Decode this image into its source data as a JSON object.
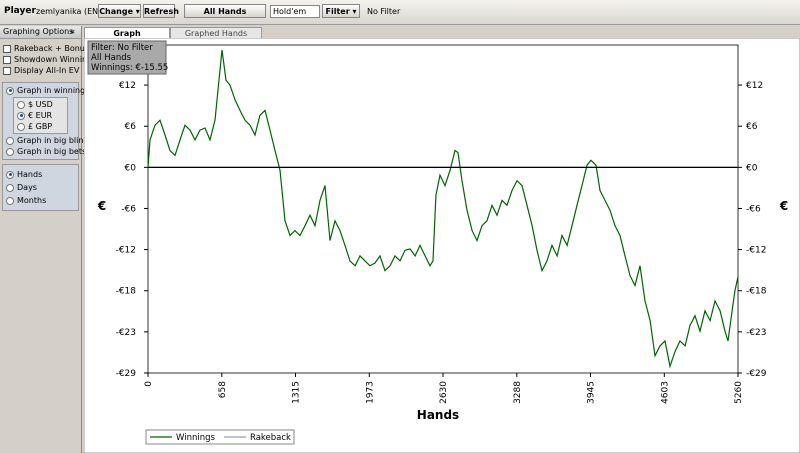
{
  "toolbar": {
    "player_label": "Player",
    "player": "zemlyanika (ENT)",
    "change": "Change",
    "refresh": "Refresh",
    "all_hands": "All Hands",
    "game": "Hold'em",
    "filter": "Filter",
    "filter_status": "No Filter"
  },
  "sidebar": {
    "title": "Graphing Options",
    "collapse": "«",
    "checkboxes": [
      "Rakeback + Bonuses",
      "Showdown Winnings",
      "Display All-In EV"
    ],
    "winnings": "Graph in winnings",
    "currencies": [
      "$ USD",
      "€ EUR",
      "£ GBP"
    ],
    "modes": [
      "Graph in big blinds",
      "Graph in big bets"
    ],
    "periods": [
      "Hands",
      "Days",
      "Months"
    ]
  },
  "tabs": [
    "Graph",
    "Graphed Hands"
  ],
  "chart_data": {
    "type": "line",
    "info": [
      "Filter: No Filter",
      "All Hands",
      "Winnings: €-15.55"
    ],
    "x_label": "Hands",
    "y_label": "€",
    "x": [
      0,
      18,
      62,
      107,
      152,
      196,
      241,
      285,
      330,
      374,
      419,
      464,
      508,
      553,
      597,
      624,
      660,
      695,
      731,
      776,
      820,
      865,
      909,
      954,
      998,
      1043,
      1088,
      1132,
      1177,
      1221,
      1266,
      1310,
      1355,
      1400,
      1444,
      1489,
      1533,
      1578,
      1623,
      1667,
      1712,
      1756,
      1801,
      1846,
      1890,
      1935,
      1979,
      2024,
      2068,
      2113,
      2158,
      2202,
      2247,
      2291,
      2336,
      2381,
      2425,
      2470,
      2514,
      2541,
      2567,
      2603,
      2648,
      2693,
      2737,
      2764,
      2799,
      2844,
      2889,
      2933,
      2978,
      3022,
      3067,
      3111,
      3156,
      3201,
      3245,
      3290,
      3334,
      3379,
      3424,
      3468,
      3513,
      3557,
      3602,
      3647,
      3691,
      3736,
      3780,
      3825,
      3869,
      3914,
      3949,
      3994,
      4030,
      4074,
      4119,
      4163,
      4208,
      4253,
      4297,
      4342,
      4386,
      4431,
      4476,
      4520,
      4565,
      4609,
      4654,
      4698,
      4743,
      4788,
      4832,
      4877,
      4921,
      4966,
      5011,
      5055,
      5100,
      5144,
      5171,
      5207,
      5233,
      5260
    ],
    "series": [
      {
        "name": "Winnings",
        "color": "#006400",
        "values": [
          0,
          3.9,
          6.0,
          6.7,
          4.6,
          2.4,
          1.7,
          3.9,
          6.0,
          5.3,
          3.9,
          5.3,
          5.6,
          3.9,
          6.7,
          11.0,
          16.7,
          12.4,
          11.7,
          9.6,
          8.1,
          6.7,
          6.0,
          4.6,
          7.4,
          8.1,
          5.3,
          2.4,
          -0.4,
          -7.6,
          -9.7,
          -9.0,
          -9.7,
          -8.3,
          -6.8,
          -8.3,
          -4.7,
          -2.6,
          -10.4,
          -7.6,
          -9.0,
          -11.1,
          -13.3,
          -14.0,
          -12.6,
          -13.3,
          -14.0,
          -13.6,
          -12.6,
          -14.7,
          -14.0,
          -12.6,
          -13.3,
          -11.8,
          -11.6,
          -12.6,
          -11.1,
          -12.6,
          -14.0,
          -13.3,
          -4.0,
          -1.1,
          -2.6,
          -0.4,
          2.4,
          2.1,
          -1.9,
          -6.1,
          -9.0,
          -10.4,
          -8.3,
          -7.6,
          -5.4,
          -6.8,
          -4.7,
          -5.4,
          -3.3,
          -1.9,
          -2.6,
          -5.4,
          -8.3,
          -11.8,
          -14.7,
          -13.3,
          -11.1,
          -12.6,
          -9.7,
          -11.1,
          -8.3,
          -5.4,
          -2.6,
          0.3,
          1.0,
          0.3,
          -3.3,
          -4.7,
          -6.1,
          -8.3,
          -9.7,
          -12.6,
          -15.4,
          -16.8,
          -14.0,
          -19.0,
          -21.8,
          -26.8,
          -25.4,
          -24.7,
          -28.3,
          -26.2,
          -24.7,
          -25.4,
          -22.5,
          -21.1,
          -23.3,
          -20.4,
          -21.8,
          -19.0,
          -20.4,
          -23.3,
          -24.7,
          -20.4,
          -17.5,
          -15.55
        ]
      },
      {
        "name": "Rakeback",
        "color": "#9999cc",
        "values": [
          0,
          0,
          0,
          0,
          0,
          0,
          0,
          0,
          0,
          0,
          0,
          0,
          0,
          0,
          0,
          0,
          0,
          0,
          0,
          0,
          0,
          0,
          0,
          0,
          0,
          0,
          0,
          0,
          0,
          0,
          0,
          0,
          0,
          0,
          0,
          0,
          0,
          0,
          0,
          0,
          0,
          0,
          0,
          0,
          0,
          0,
          0,
          0,
          0,
          0,
          0,
          0,
          0,
          0,
          0,
          0,
          0,
          0,
          0,
          0,
          0,
          0,
          0,
          0,
          0,
          0,
          0,
          0,
          0,
          0,
          0,
          0,
          0,
          0,
          0,
          0,
          0,
          0,
          0,
          0,
          0,
          0,
          0,
          0,
          0,
          0,
          0,
          0,
          0,
          0,
          0,
          0,
          0,
          0,
          0,
          0,
          0,
          0,
          0,
          0,
          0,
          0,
          0,
          0,
          0,
          0,
          0,
          0,
          0,
          0,
          0,
          0,
          0,
          0,
          0,
          0,
          0,
          0,
          0,
          0,
          0,
          0,
          0,
          0
        ]
      }
    ],
    "xlim": [
      0,
      5260
    ],
    "xticks": [
      0,
      658,
      1315,
      1973,
      2630,
      3288,
      3945,
      4603,
      5260
    ],
    "ylim": [
      -29.25,
      17.4
    ],
    "yticks": [
      {
        "value": 11.7,
        "label": "€12"
      },
      {
        "value": 5.85,
        "label": "€6"
      },
      {
        "value": 0,
        "label": "€0"
      },
      {
        "value": -5.85,
        "label": "-€6"
      },
      {
        "value": -11.7,
        "label": "-€12"
      },
      {
        "value": -17.55,
        "label": "-€18"
      },
      {
        "value": -23.4,
        "label": "-€23"
      },
      {
        "value": -29.25,
        "label": "-€29"
      }
    ],
    "zero_line": true,
    "legend": "bottom-left"
  }
}
